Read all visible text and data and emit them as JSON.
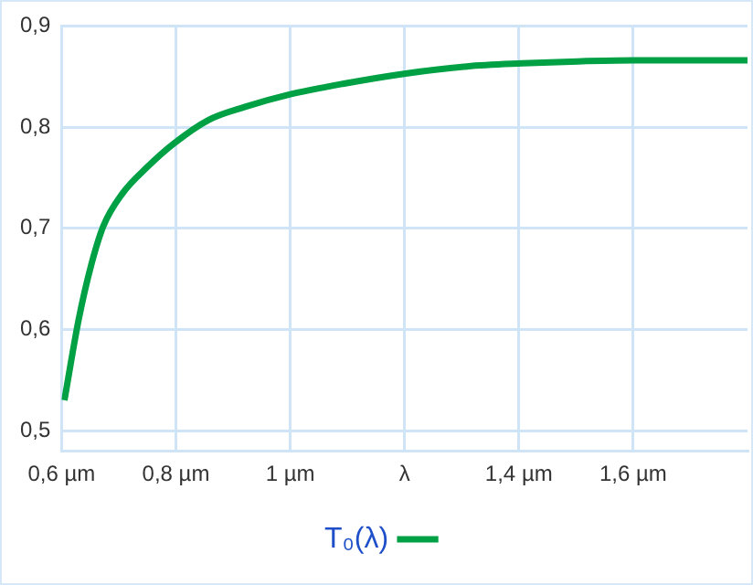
{
  "chart_data": {
    "type": "line",
    "xlim": [
      0.6,
      1.8
    ],
    "ylim": [
      0.48,
      0.9
    ],
    "xticks": [
      {
        "value": 0.6,
        "label": "0,6 µm"
      },
      {
        "value": 0.8,
        "label": "0,8 µm"
      },
      {
        "value": 1,
        "label": "1 µm"
      },
      {
        "value": 1.2,
        "label": "λ"
      },
      {
        "value": 1.4,
        "label": "1,4 µm"
      },
      {
        "value": 1.6,
        "label": "1,6 µm"
      }
    ],
    "yticks": [
      {
        "value": 0.5,
        "label": "0,5"
      },
      {
        "value": 0.6,
        "label": "0,6"
      },
      {
        "value": 0.7,
        "label": "0,7"
      },
      {
        "value": 0.8,
        "label": "0,8"
      },
      {
        "value": 0.9,
        "label": "0,9"
      }
    ],
    "series": [
      {
        "name": "T₀(λ)",
        "color": "#00a044",
        "x": [
          0.605,
          0.63,
          0.652,
          0.673,
          0.706,
          0.749,
          0.797,
          0.857,
          0.921,
          0.997,
          1.094,
          1.202,
          1.309,
          1.406,
          1.503,
          1.6,
          1.8
        ],
        "values": [
          0.53,
          0.61,
          0.664,
          0.702,
          0.734,
          0.76,
          0.784,
          0.807,
          0.82,
          0.832,
          0.843,
          0.853,
          0.86,
          0.863,
          0.865,
          0.866,
          0.866
        ]
      }
    ],
    "grid": true,
    "legend": "bottom",
    "marker": "none",
    "line_style": "solid"
  }
}
